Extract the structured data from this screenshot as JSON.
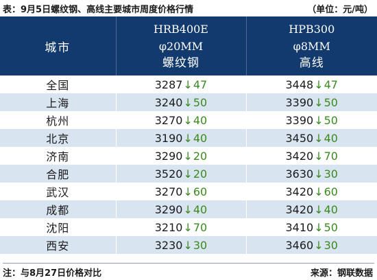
{
  "caption": {
    "title": "表：9月5日螺纹钢、高线主要城市周度价格行情",
    "unit": "（单位：元/吨）"
  },
  "table": {
    "headers": {
      "city": "城市",
      "rebar": [
        "HRB400E",
        "φ20MM",
        "螺纹钢"
      ],
      "wire": [
        "HPB300",
        "φ8MM",
        "高线"
      ]
    },
    "direction_symbol": "↓",
    "change_color": "#3a8a1e",
    "rows": [
      {
        "city": "全国",
        "rebar_price": "3287",
        "rebar_change": "47",
        "wire_price": "3448",
        "wire_change": "47"
      },
      {
        "city": "上海",
        "rebar_price": "3240",
        "rebar_change": "50",
        "wire_price": "3390",
        "wire_change": "50"
      },
      {
        "city": "杭州",
        "rebar_price": "3270",
        "rebar_change": "40",
        "wire_price": "3390",
        "wire_change": "50"
      },
      {
        "city": "北京",
        "rebar_price": "3190",
        "rebar_change": "40",
        "wire_price": "3450",
        "wire_change": "40"
      },
      {
        "city": "济南",
        "rebar_price": "3290",
        "rebar_change": "20",
        "wire_price": "3420",
        "wire_change": "70"
      },
      {
        "city": "合肥",
        "rebar_price": "3520",
        "rebar_change": "20",
        "wire_price": "3630",
        "wire_change": "30"
      },
      {
        "city": "武汉",
        "rebar_price": "3270",
        "rebar_change": "60",
        "wire_price": "3420",
        "wire_change": "60"
      },
      {
        "city": "成都",
        "rebar_price": "3290",
        "rebar_change": "40",
        "wire_price": "3420",
        "wire_change": "40"
      },
      {
        "city": "沈阳",
        "rebar_price": "3210",
        "rebar_change": "70",
        "wire_price": "3410",
        "wire_change": "50"
      },
      {
        "city": "西安",
        "rebar_price": "3230",
        "rebar_change": "30",
        "wire_price": "3460",
        "wire_change": "30"
      }
    ]
  },
  "footer": {
    "note": "注：与8月27日价格对比",
    "source": "来源：钢联数据"
  },
  "colors": {
    "header_background": "#123a6e",
    "header_text": "#ffffff",
    "stripe": "#d9e4f1"
  }
}
